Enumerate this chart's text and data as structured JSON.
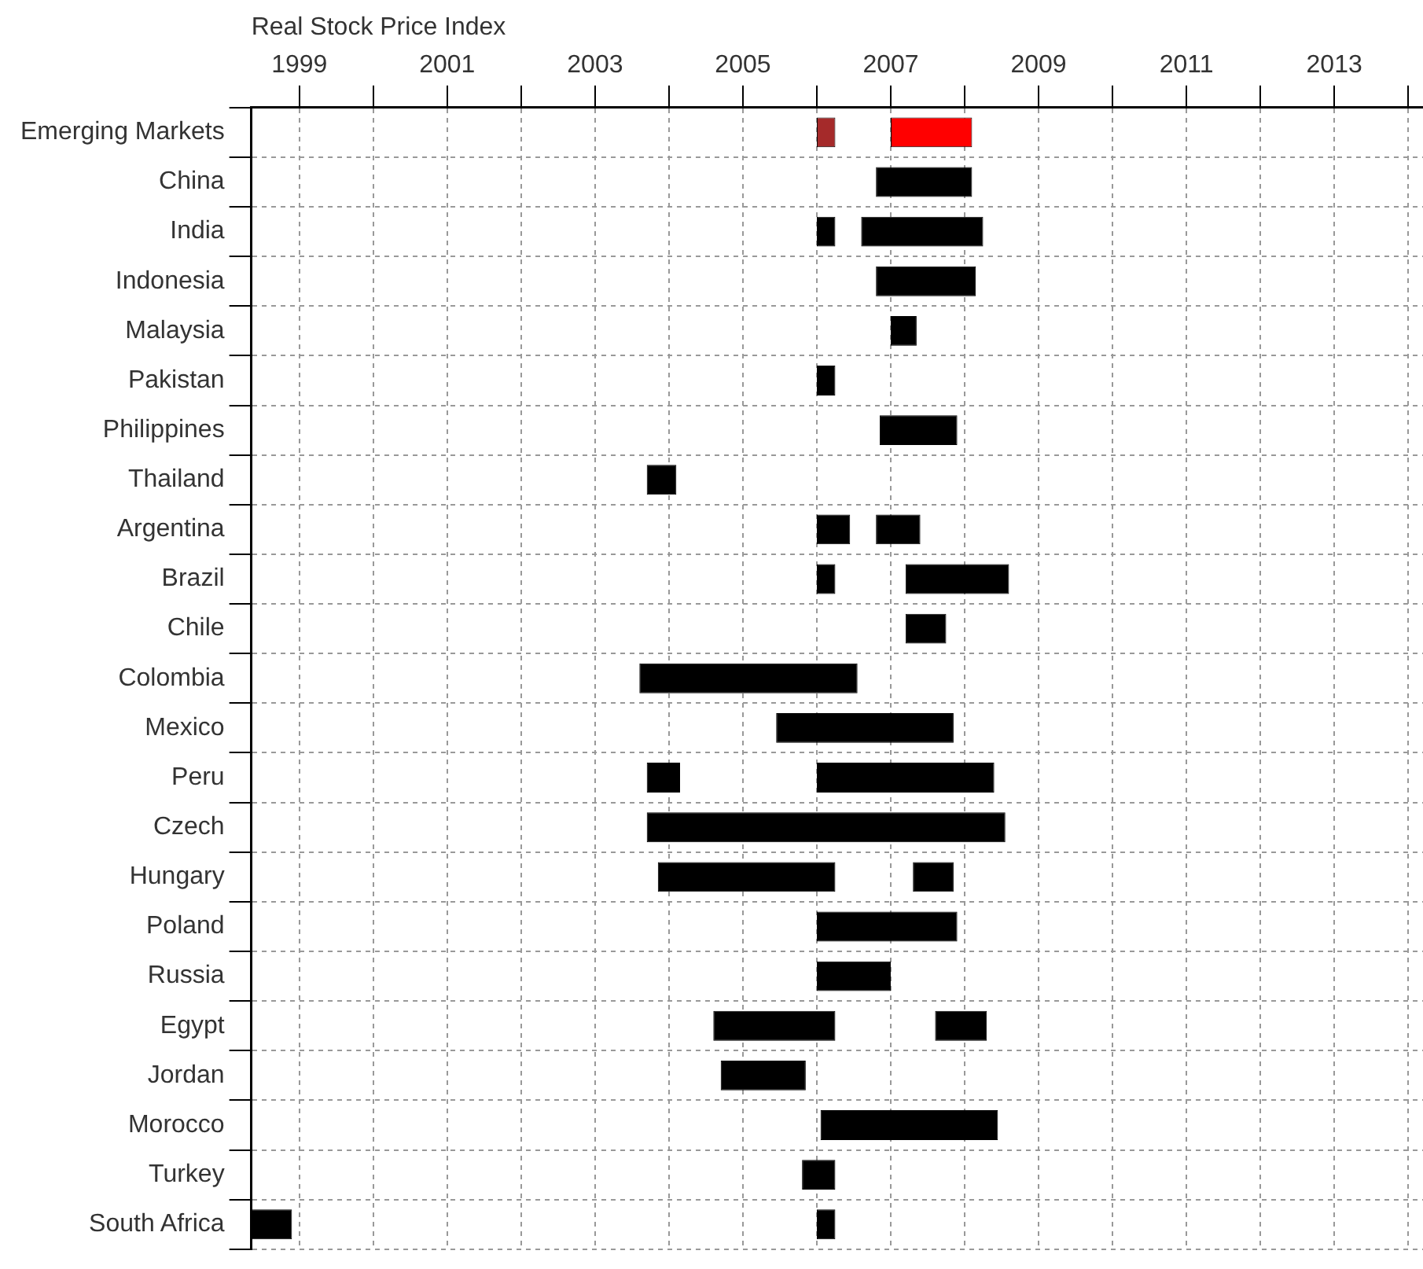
{
  "chart_data": {
    "type": "bar",
    "orientation": "horizontal",
    "xlabel": "Real Stock Price Index",
    "categories": [
      "Emerging Markets",
      "China",
      "India",
      "Indonesia",
      "Malaysia",
      "Pakistan",
      "Philippines",
      "Thailand",
      "Argentina",
      "Brazil",
      "Chile",
      "Colombia",
      "Mexico",
      "Peru",
      "Czech",
      "Hungary",
      "Poland",
      "Russia",
      "Egypt",
      "Jordan",
      "Morocco",
      "Turkey",
      "South Africa"
    ],
    "series": [
      {
        "color": "#000000",
        "colors": [
          "#a52a2a",
          "#000000",
          "#000000",
          "#000000",
          "#000000",
          "#000000",
          "#000000",
          "#000000",
          "#000000",
          "#000000",
          "#000000",
          "#000000",
          "#000000",
          "#000000",
          "#000000",
          "#000000",
          "#000000",
          "#000000",
          "#000000",
          "#000000",
          "#000000",
          "#000000",
          "#000000"
        ],
        "base": [
          2006.0,
          2006.8,
          2006.0,
          2006.8,
          2007.0,
          2006.0,
          2006.85,
          2003.7,
          2006.0,
          2006.0,
          2007.2,
          2003.6,
          2005.45,
          2003.7,
          2003.7,
          2003.85,
          2006.0,
          2006.0,
          2004.6,
          2004.7,
          2006.05,
          2005.8,
          1998.35
        ],
        "values": [
          0.25,
          1.3,
          0.25,
          1.35,
          0.35,
          0.25,
          1.05,
          0.4,
          0.45,
          0.25,
          0.55,
          2.95,
          2.4,
          0.45,
          4.85,
          2.4,
          1.9,
          1.0,
          1.65,
          1.15,
          2.4,
          0.45,
          0.55
        ]
      },
      {
        "color": "#000000",
        "colors": [
          "#ff0000",
          "#000000",
          "#000000",
          "#000000",
          "#000000",
          "#000000",
          "#000000",
          "#000000",
          "#000000",
          "#000000",
          "#000000",
          "#000000",
          "#000000",
          "#000000",
          "#000000",
          "#000000",
          "#000000",
          "#000000",
          "#000000",
          "#000000",
          "#000000",
          "#000000",
          "#000000"
        ],
        "base": [
          2007.0,
          null,
          2006.6,
          null,
          null,
          null,
          null,
          null,
          2006.8,
          2007.2,
          null,
          null,
          null,
          2006.0,
          null,
          2007.3,
          null,
          null,
          2007.6,
          null,
          null,
          null,
          2006.0
        ],
        "values": [
          1.1,
          null,
          1.65,
          null,
          null,
          null,
          null,
          null,
          0.6,
          1.4,
          null,
          null,
          null,
          2.4,
          null,
          0.55,
          null,
          null,
          0.7,
          null,
          null,
          null,
          0.25
        ]
      }
    ],
    "xlim": [
      1998.35,
      2014.2
    ],
    "xticks": [
      1999,
      {
        "value": 2000,
        "label": null
      },
      2001,
      {
        "value": 2002,
        "label": null
      },
      2003,
      {
        "value": 2004,
        "label": null
      },
      2005,
      {
        "value": 2006,
        "label": null
      },
      2007,
      {
        "value": 2008,
        "label": null
      },
      2009,
      {
        "value": 2010,
        "label": null
      },
      2011,
      {
        "value": 2012,
        "label": null
      },
      2013,
      {
        "value": 2014,
        "label": null
      }
    ],
    "grid": true
  }
}
